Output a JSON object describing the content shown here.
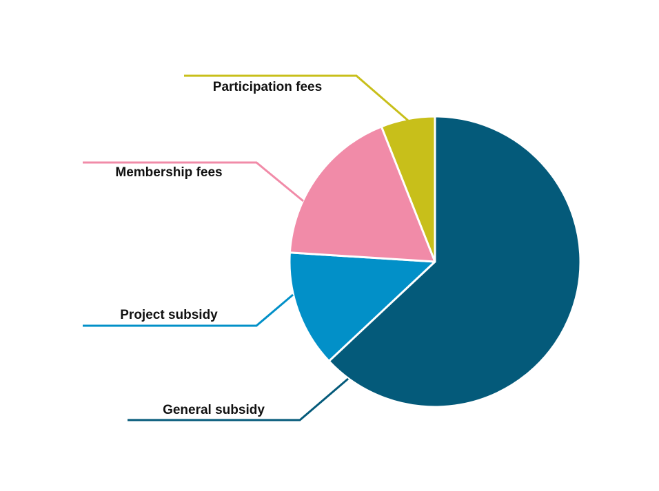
{
  "chart_data": {
    "type": "pie",
    "categories": [
      "General subsidy",
      "Project subsidy",
      "Membership fees",
      "Participation fees"
    ],
    "values": [
      63,
      13,
      18,
      6
    ],
    "colors": [
      "#045a7a",
      "#0290c8",
      "#f18ba8",
      "#c8bf1a"
    ]
  }
}
